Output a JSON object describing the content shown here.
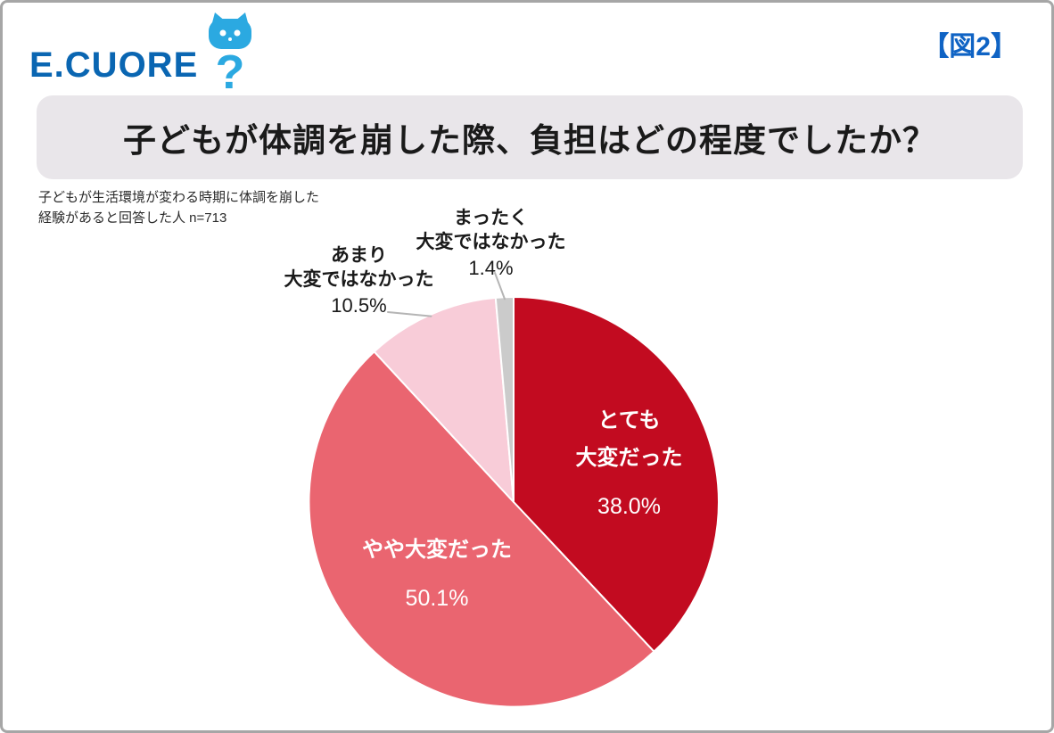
{
  "page": {
    "logo": {
      "text": "E.CUORE",
      "mark": "?"
    },
    "figure_tag": "【図2】"
  },
  "chart_data": {
    "type": "pie",
    "title": "子どもが体調を崩した際、負担はどの程度でしたか？",
    "note_lines": [
      "子どもが生活環境が変わる時期に体調を崩した",
      "経験があると回答した人 n=713"
    ],
    "n": 713,
    "start_angle_deg": 0,
    "direction": "clockwise",
    "leader_line_color": "#b5b5b5",
    "segments": [
      {
        "label": "とても大変だった",
        "value": 38.0,
        "pct_label": "38.0%",
        "color": "#c20b20",
        "text_color": "#ffffff",
        "label_lines": [
          "とても",
          "大変だった"
        ],
        "label_placement": "inside"
      },
      {
        "label": "やや大変だった",
        "value": 50.1,
        "pct_label": "50.1%",
        "color": "#ea6570",
        "text_color": "#ffffff",
        "label_lines": [
          "やや大変だった"
        ],
        "label_placement": "inside"
      },
      {
        "label": "あまり大変ではなかった",
        "value": 10.5,
        "pct_label": "10.5%",
        "color": "#f8ccd8",
        "text_color": "#1a1a1a",
        "label_lines": [
          "あまり",
          "大変ではなかった"
        ],
        "label_placement": "outside"
      },
      {
        "label": "まったく大変ではなかった",
        "value": 1.4,
        "pct_label": "1.4%",
        "color": "#cbcbcb",
        "text_color": "#1a1a1a",
        "label_lines": [
          "まったく",
          "大変ではなかった"
        ],
        "label_placement": "outside"
      }
    ]
  }
}
